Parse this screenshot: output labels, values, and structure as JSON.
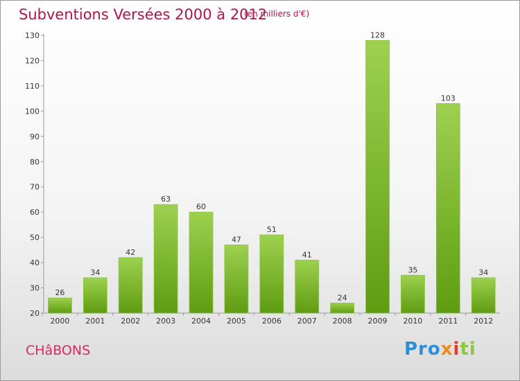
{
  "header": {
    "title": "Subventions Versées 2000 à 2012",
    "unit_note": "(en milliers d'€)"
  },
  "footer": {
    "commune": "CHâBONS",
    "logo_parts": [
      "Pro",
      "x",
      "i",
      "ti"
    ]
  },
  "colors": {
    "title": "#b5124a",
    "bar_top": "#9dd14f",
    "bar_bottom": "#5f9c12"
  },
  "chart_data": {
    "type": "bar",
    "title": "Subventions Versées 2000 à 2012",
    "subtitle": "(en milliers d'€)",
    "xlabel": "",
    "ylabel": "",
    "categories": [
      "2000",
      "2001",
      "2002",
      "2003",
      "2004",
      "2005",
      "2006",
      "2007",
      "2008",
      "2009",
      "2010",
      "2011",
      "2012"
    ],
    "values": [
      26,
      34,
      42,
      63,
      60,
      47,
      51,
      41,
      24,
      128,
      35,
      103,
      34
    ],
    "data_labels": [
      "26",
      "34",
      "42",
      "63",
      "60",
      "47",
      "51",
      "41",
      "24",
      "128",
      "35",
      "103",
      "34"
    ],
    "ylim": [
      20,
      130
    ],
    "yticks": [
      20,
      30,
      40,
      50,
      60,
      70,
      80,
      90,
      100,
      110,
      120,
      130
    ],
    "ytick_labels": [
      "20",
      "30",
      "40",
      "50",
      "60",
      "70",
      "80",
      "90",
      "100",
      "110",
      "120",
      "130"
    ],
    "grid": false,
    "legend": "none"
  }
}
